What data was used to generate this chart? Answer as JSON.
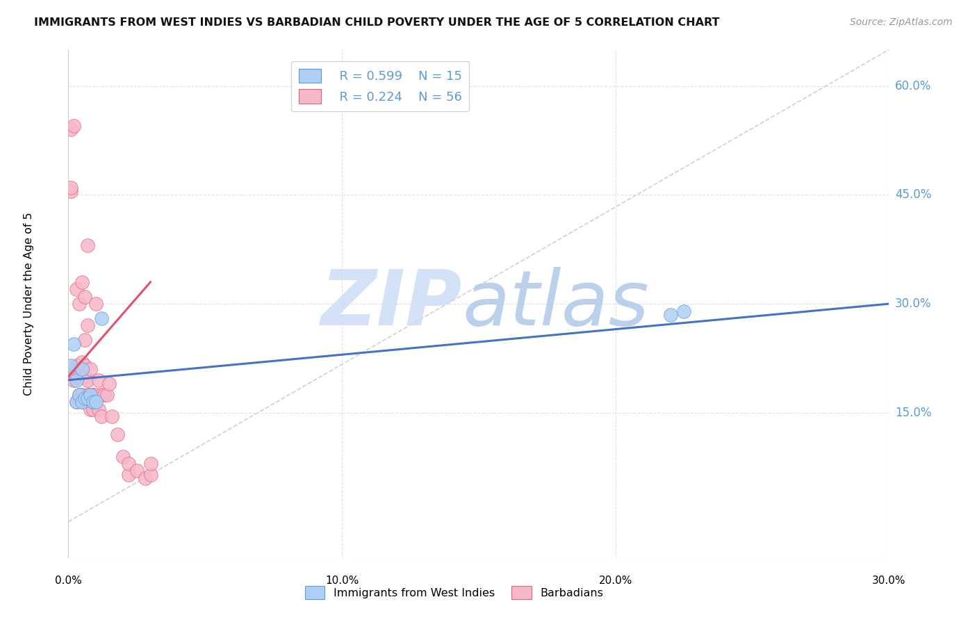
{
  "title": "IMMIGRANTS FROM WEST INDIES VS BARBADIAN CHILD POVERTY UNDER THE AGE OF 5 CORRELATION CHART",
  "source": "Source: ZipAtlas.com",
  "ylabel": "Child Poverty Under the Age of 5",
  "xlim": [
    0.0,
    0.3
  ],
  "ylim": [
    -0.05,
    0.65
  ],
  "y_tick_vals": [
    0.15,
    0.3,
    0.45,
    0.6
  ],
  "y_tick_labels": [
    "15.0%",
    "30.0%",
    "45.0%",
    "60.0%"
  ],
  "x_tick_vals": [
    0.0,
    0.1,
    0.2,
    0.3
  ],
  "x_tick_labels": [
    "0.0%",
    "10.0%",
    "20.0%",
    "30.0%"
  ],
  "legend_blue_r": "R = 0.599",
  "legend_blue_n": "N = 15",
  "legend_pink_r": "R = 0.224",
  "legend_pink_n": "N = 56",
  "blue_color": "#aecff5",
  "blue_edge_color": "#5b9bd5",
  "pink_color": "#f5b8c8",
  "pink_edge_color": "#e8607a",
  "blue_line_color": "#4472c4",
  "pink_line_color": "#e05070",
  "diag_color": "#d0d0d0",
  "grid_color": "#e0e0e0",
  "right_label_color": "#5b9bd5",
  "watermark_zip_color": "#ccddf5",
  "watermark_atlas_color": "#b0c8e8",
  "blue_x": [
    0.001,
    0.002,
    0.003,
    0.003,
    0.004,
    0.005,
    0.005,
    0.006,
    0.007,
    0.008,
    0.009,
    0.01,
    0.012,
    0.22,
    0.225
  ],
  "blue_y": [
    0.215,
    0.245,
    0.195,
    0.165,
    0.175,
    0.21,
    0.165,
    0.17,
    0.17,
    0.175,
    0.165,
    0.165,
    0.28,
    0.285,
    0.29
  ],
  "pink_x": [
    0.001,
    0.001,
    0.001,
    0.002,
    0.002,
    0.002,
    0.003,
    0.003,
    0.003,
    0.003,
    0.003,
    0.004,
    0.004,
    0.004,
    0.004,
    0.005,
    0.005,
    0.005,
    0.005,
    0.006,
    0.006,
    0.006,
    0.006,
    0.006,
    0.007,
    0.007,
    0.007,
    0.007,
    0.007,
    0.007,
    0.008,
    0.008,
    0.008,
    0.008,
    0.009,
    0.009,
    0.009,
    0.01,
    0.01,
    0.01,
    0.011,
    0.011,
    0.012,
    0.012,
    0.013,
    0.014,
    0.015,
    0.016,
    0.018,
    0.02,
    0.022,
    0.022,
    0.025,
    0.028,
    0.03,
    0.03
  ],
  "pink_y": [
    0.455,
    0.46,
    0.54,
    0.195,
    0.205,
    0.545,
    0.165,
    0.2,
    0.21,
    0.215,
    0.32,
    0.17,
    0.175,
    0.21,
    0.3,
    0.165,
    0.175,
    0.22,
    0.33,
    0.17,
    0.2,
    0.215,
    0.25,
    0.31,
    0.165,
    0.17,
    0.175,
    0.195,
    0.27,
    0.38,
    0.155,
    0.17,
    0.175,
    0.21,
    0.155,
    0.165,
    0.175,
    0.17,
    0.175,
    0.3,
    0.155,
    0.195,
    0.145,
    0.175,
    0.175,
    0.175,
    0.19,
    0.145,
    0.12,
    0.09,
    0.065,
    0.08,
    0.07,
    0.06,
    0.065,
    0.08
  ],
  "blue_line_x0": 0.0,
  "blue_line_x1": 0.3,
  "blue_line_y0": 0.195,
  "blue_line_y1": 0.3,
  "pink_line_x0": 0.0,
  "pink_line_x1": 0.03,
  "pink_line_y0": 0.2,
  "pink_line_y1": 0.33
}
